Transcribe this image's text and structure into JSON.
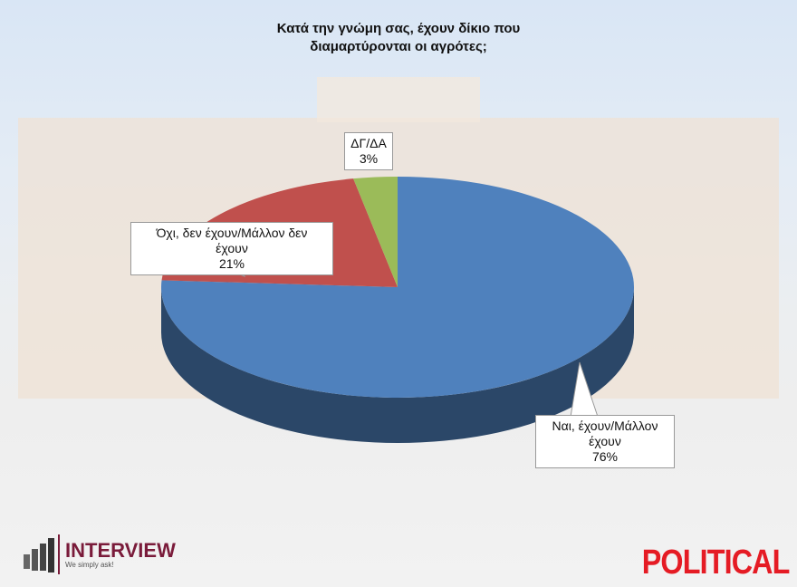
{
  "chart_data": {
    "type": "pie",
    "style": "3d",
    "title": "Κατά την γνώμη σας, έχουν δίκιο που διαμαρτύρονται οι αγρότες;",
    "title_lines": [
      "Κατά την γνώμη σας, έχουν δίκιο που",
      "διαμαρτύρονται οι αγρότες;"
    ],
    "slices": [
      {
        "label": "Ναι, έχουν/Μάλλον έχουν",
        "label_lines": [
          "Ναι, έχουν/Μάλλον",
          "έχουν"
        ],
        "value": 76,
        "value_label": "76%",
        "color": "#4f81bd"
      },
      {
        "label": "Όχι, δεν έχουν/Μάλλον δεν έχουν",
        "label_lines": [
          "Όχι, δεν έχουν/Μάλλον δεν",
          "έχουν"
        ],
        "value": 21,
        "value_label": "21%",
        "color": "#c0504d"
      },
      {
        "label": "ΔΓ/ΔΑ",
        "label_lines": [
          "ΔΓ/ΔΑ"
        ],
        "value": 3,
        "value_label": "3%",
        "color": "#9bbb59"
      }
    ]
  },
  "branding": {
    "interview_name": "INTERVIEW",
    "interview_tagline": "We simply ask!",
    "political": "POLITICAL",
    "interview_color": "#7a1b3a",
    "political_color": "#e51b24"
  }
}
